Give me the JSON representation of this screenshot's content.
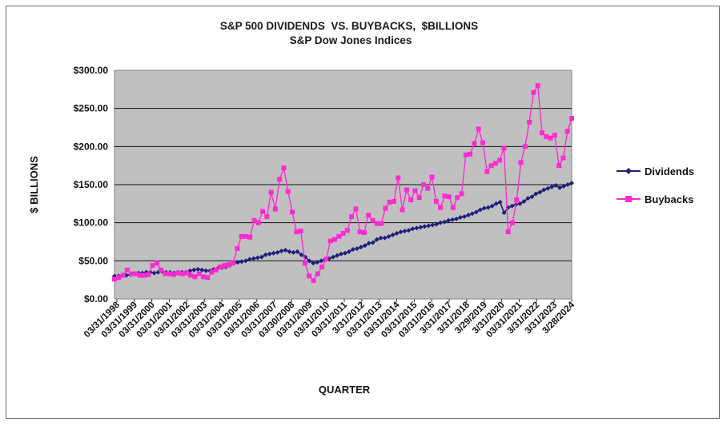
{
  "chart_data": {
    "type": "line",
    "title": "S&P 500 DIVIDENDS  VS. BUYBACKS,  $BILLIONS",
    "subtitle": "S&P Dow Jones Indices",
    "xlabel": "QUARTER",
    "ylabel": "$ BILLIONS",
    "ylim": [
      0,
      300
    ],
    "yticks": [
      "$0.00",
      "$50.00",
      "$100.00",
      "$150.00",
      "$200.00",
      "$250.00",
      "$300.00"
    ],
    "ytick_values": [
      0,
      50,
      100,
      150,
      200,
      250,
      300
    ],
    "grid": true,
    "legend": "right",
    "x_tick_labels": [
      "03/31/1998",
      "03/31/1999",
      "03/31/2000",
      "03/31/2001",
      "03/31/2002",
      "03/31/2003",
      "03/31/2004",
      "03/31/2005",
      "03/31/2006",
      "03/31/2007",
      "03/30/2008",
      "03/31/2009",
      "03/31/2010",
      "03/31/2011",
      "3/31/2012",
      "03/31/2013",
      "03/31/2014",
      "03/31/2015",
      "03/31/2016",
      "3/31/2017",
      "3/31/2018",
      "3/29/2019",
      "3/31/2020",
      "03/31/2021",
      "3/31/2022",
      "3/31/2023",
      "3/28/2024"
    ],
    "series": [
      {
        "name": "Dividends",
        "color": "#1f1f7a",
        "marker": "diamond",
        "values": [
          30,
          30,
          31,
          31,
          32,
          33,
          34,
          34,
          35,
          35,
          34,
          35,
          36,
          35,
          35,
          34,
          35,
          35,
          35,
          37,
          38,
          39,
          38,
          37,
          37,
          39,
          40,
          41,
          42,
          44,
          47,
          48,
          49,
          50,
          52,
          53,
          54,
          55,
          58,
          59,
          60,
          61,
          63,
          64,
          62,
          61,
          62,
          58,
          55,
          50,
          47,
          48,
          50,
          52,
          53,
          55,
          57,
          59,
          60,
          62,
          65,
          66,
          68,
          70,
          73,
          74,
          78,
          80,
          80,
          82,
          84,
          86,
          88,
          89,
          90,
          92,
          93,
          94,
          95,
          96,
          97,
          98,
          100,
          101,
          103,
          104,
          105,
          107,
          108,
          110,
          112,
          114,
          117,
          119,
          120,
          122,
          125,
          127,
          113,
          120,
          122,
          124,
          125,
          128,
          132,
          134,
          138,
          140,
          143,
          145,
          147,
          149,
          146,
          148,
          150,
          152
        ]
      },
      {
        "name": "Buybacks",
        "color": "#ff2bd3",
        "marker": "square",
        "values": [
          26,
          28,
          31,
          38,
          33,
          33,
          31,
          31,
          32,
          44,
          47,
          38,
          33,
          33,
          32,
          34,
          33,
          34,
          31,
          29,
          33,
          29,
          28,
          35,
          38,
          42,
          44,
          45,
          47,
          66,
          82,
          82,
          81,
          103,
          100,
          115,
          108,
          140,
          118,
          157,
          172,
          141,
          114,
          88,
          89,
          47,
          30,
          24,
          33,
          42,
          52,
          76,
          78,
          82,
          86,
          90,
          108,
          118,
          88,
          87,
          110,
          103,
          99,
          99,
          119,
          127,
          128,
          159,
          117,
          143,
          130,
          142,
          133,
          150,
          145,
          160,
          128,
          120,
          135,
          134,
          120,
          133,
          138,
          189,
          190,
          204,
          223,
          205,
          167,
          175,
          178,
          182,
          198,
          88,
          100,
          130,
          179,
          200,
          232,
          271,
          280,
          218,
          213,
          211,
          215,
          175,
          185,
          220,
          237
        ]
      }
    ]
  }
}
